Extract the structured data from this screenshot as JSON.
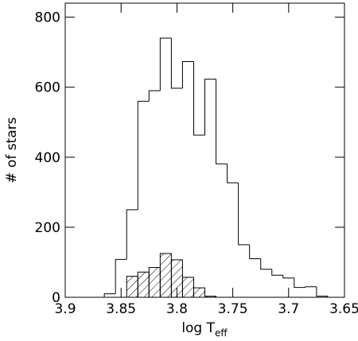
{
  "chart_data": {
    "type": "histogram",
    "x_label": "log T",
    "x_label_sub": "eff",
    "y_label": "# of stars",
    "xlim": [
      3.9,
      3.65
    ],
    "ylim": [
      0,
      840
    ],
    "xticks": [
      3.9,
      3.85,
      3.8,
      3.75,
      3.7,
      3.65
    ],
    "yticks": [
      0,
      200,
      400,
      600,
      800
    ],
    "series": [
      {
        "style": "open",
        "color": "#000000",
        "bins": [
          3.865,
          3.855,
          3.845,
          3.835,
          3.825,
          3.815,
          3.805,
          3.795,
          3.785,
          3.775,
          3.765,
          3.755,
          3.745,
          3.735,
          3.725,
          3.715,
          3.705,
          3.695,
          3.685,
          3.675,
          3.665
        ],
        "values": [
          10,
          108,
          250,
          560,
          590,
          740,
          597,
          673,
          463,
          623,
          381,
          327,
          150,
          110,
          80,
          63,
          55,
          28,
          30,
          3
        ]
      },
      {
        "style": "hatched",
        "color": "#000000",
        "bins": [
          3.845,
          3.835,
          3.825,
          3.815,
          3.805,
          3.795,
          3.785,
          3.775,
          3.765
        ],
        "values": [
          60,
          72,
          85,
          125,
          107,
          57,
          27,
          3
        ]
      }
    ]
  }
}
